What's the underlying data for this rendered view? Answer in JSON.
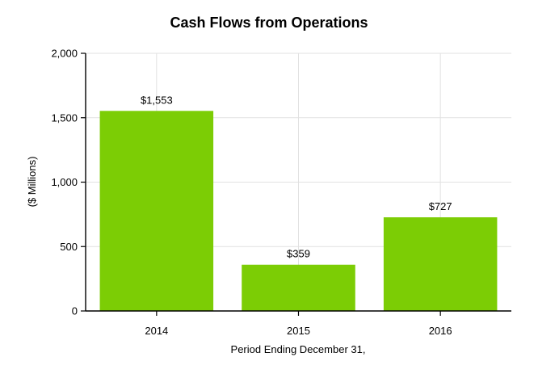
{
  "chart_data": {
    "type": "bar",
    "title": "Cash Flows from Operations",
    "xlabel": "Period Ending December 31,",
    "ylabel": "($ Millions)",
    "categories": [
      "2014",
      "2015",
      "2016"
    ],
    "values": [
      1553,
      359,
      727
    ],
    "data_labels": [
      "$1,553",
      "$359",
      "$727"
    ],
    "ylim": [
      0,
      2000
    ],
    "yticks": [
      0,
      500,
      1000,
      1500,
      2000
    ],
    "ytick_labels": [
      "0",
      "500",
      "1,000",
      "1,500",
      "2,000"
    ],
    "grid": true,
    "bar_color": "#7ccd05"
  }
}
